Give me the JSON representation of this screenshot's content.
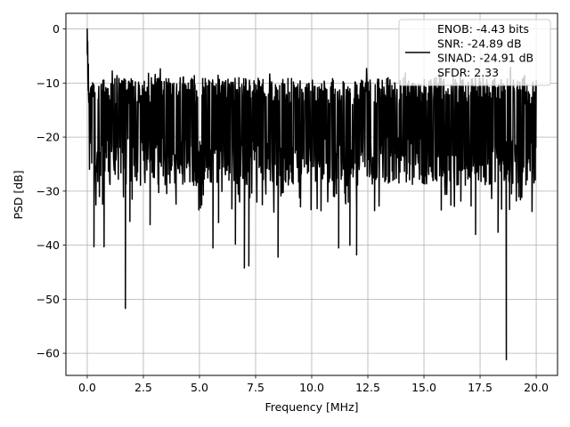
{
  "chart_data": {
    "type": "line",
    "title": "",
    "xlabel": "Frequency [MHz]",
    "ylabel": "PSD [dB]",
    "xlim": [
      -0.95,
      20.95
    ],
    "ylim": [
      -64.1,
      2.9
    ],
    "xticks": [
      0.0,
      2.5,
      5.0,
      7.5,
      10.0,
      12.5,
      15.0,
      17.5,
      20.0
    ],
    "xtick_labels": [
      "0.0",
      "2.5",
      "5.0",
      "7.5",
      "10.0",
      "12.5",
      "15.0",
      "17.5",
      "20.0"
    ],
    "yticks": [
      0,
      -10,
      -20,
      -30,
      -40,
      -50,
      -60
    ],
    "ytick_labels": [
      "0",
      "−10",
      "−20",
      "−30",
      "−40",
      "−50",
      "−60"
    ],
    "grid": true,
    "legend_position": "top-right",
    "line_color": "#000000",
    "series": [
      {
        "name": "ENOB: -4.43 bits\nSNR: -24.89 dB\nSINAD: -24.91 dB\nSFDR: 2.33",
        "description_stats": {
          "x_start": 0.0,
          "x_end": 20.0,
          "peak_at_x": 0.0,
          "peak_value": 0.0,
          "typical_band_upper": -9,
          "typical_band_lower": -29
        },
        "notable_points": [
          {
            "x": 0.0,
            "y": 0.0
          },
          {
            "x": 0.02,
            "y": -2.3
          },
          {
            "x": 0.05,
            "y": -6.5
          },
          {
            "x": 0.3,
            "y": -40.3
          },
          {
            "x": 0.75,
            "y": -40.3
          },
          {
            "x": 1.7,
            "y": -51.7
          },
          {
            "x": 1.9,
            "y": -35.6
          },
          {
            "x": 2.8,
            "y": -36.2
          },
          {
            "x": 5.6,
            "y": -40.5
          },
          {
            "x": 5.85,
            "y": -35.8
          },
          {
            "x": 6.6,
            "y": -39.8
          },
          {
            "x": 7.0,
            "y": -44.2
          },
          {
            "x": 7.2,
            "y": -43.8
          },
          {
            "x": 8.5,
            "y": -42.2
          },
          {
            "x": 11.2,
            "y": -40.5
          },
          {
            "x": 11.7,
            "y": -40.0
          },
          {
            "x": 12.0,
            "y": -41.8
          },
          {
            "x": 12.8,
            "y": -33.6
          },
          {
            "x": 17.3,
            "y": -38.0
          },
          {
            "x": 18.3,
            "y": -37.6
          },
          {
            "x": 18.67,
            "y": -61.2
          },
          {
            "x": 18.9,
            "y": -30.5
          }
        ]
      }
    ]
  }
}
